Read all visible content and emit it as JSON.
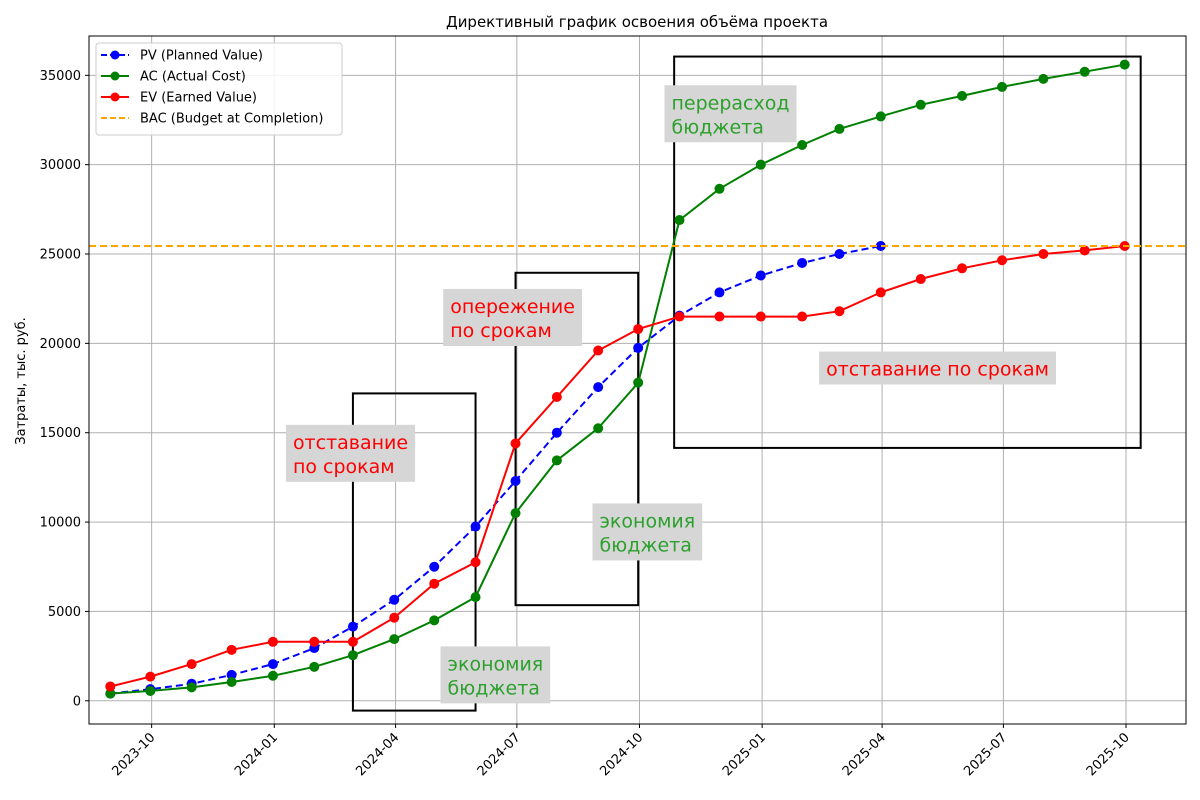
{
  "chart_data": {
    "type": "line",
    "title": "Директивный график освоения объёма проекта",
    "xlabel": "",
    "ylabel": "Затраты, тыс. руб.",
    "x_axis_kind": "date",
    "xlim": [
      "2023-08-15",
      "2025-11-15"
    ],
    "ylim": [
      -1300,
      37200
    ],
    "grid": true,
    "legend_position": "top-left",
    "x_ticks": [
      {
        "date": "2023-10-01",
        "label": "2023-10"
      },
      {
        "date": "2024-01-01",
        "label": "2024-01"
      },
      {
        "date": "2024-04-01",
        "label": "2024-04"
      },
      {
        "date": "2024-07-01",
        "label": "2024-07"
      },
      {
        "date": "2024-10-01",
        "label": "2024-10"
      },
      {
        "date": "2025-01-01",
        "label": "2025-01"
      },
      {
        "date": "2025-04-01",
        "label": "2025-04"
      },
      {
        "date": "2025-07-01",
        "label": "2025-07"
      },
      {
        "date": "2025-10-01",
        "label": "2025-10"
      }
    ],
    "y_ticks": [
      0,
      5000,
      10000,
      15000,
      20000,
      25000,
      30000,
      35000
    ],
    "series": [
      {
        "name": "PV (Planned Value)",
        "color": "#0000ff",
        "line_style": "dashed",
        "x": [
          "2023-08-31",
          "2023-09-30",
          "2023-10-31",
          "2023-11-30",
          "2023-12-31",
          "2024-01-31",
          "2024-02-29",
          "2024-03-31",
          "2024-04-30",
          "2024-05-31",
          "2024-06-30",
          "2024-07-31",
          "2024-08-31",
          "2024-09-30",
          "2024-10-31",
          "2024-11-30",
          "2024-12-31",
          "2025-01-31",
          "2025-02-28",
          "2025-03-31"
        ],
        "values": [
          400,
          650,
          950,
          1450,
          2050,
          2950,
          4150,
          5650,
          7500,
          9750,
          12300,
          15000,
          17550,
          19750,
          21550,
          22850,
          23800,
          24500,
          25000,
          25450
        ]
      },
      {
        "name": "AC (Actual Cost)",
        "color": "#008000",
        "line_style": "solid",
        "x": [
          "2023-08-31",
          "2023-09-30",
          "2023-10-31",
          "2023-11-30",
          "2023-12-31",
          "2024-01-31",
          "2024-02-29",
          "2024-03-31",
          "2024-04-30",
          "2024-05-31",
          "2024-06-30",
          "2024-07-31",
          "2024-08-31",
          "2024-09-30",
          "2024-10-31",
          "2024-11-30",
          "2024-12-31",
          "2025-01-31",
          "2025-02-28",
          "2025-03-31",
          "2025-04-30",
          "2025-05-31",
          "2025-06-30",
          "2025-07-31",
          "2025-08-31",
          "2025-09-30"
        ],
        "values": [
          400,
          550,
          750,
          1050,
          1400,
          1900,
          2550,
          3450,
          4500,
          5800,
          10500,
          13450,
          15250,
          17800,
          26900,
          28650,
          30000,
          31100,
          32000,
          32700,
          33350,
          33850,
          34350,
          34800,
          35200,
          35600
        ]
      },
      {
        "name": "EV (Earned Value)",
        "color": "#ff0000",
        "line_style": "solid",
        "x": [
          "2023-08-31",
          "2023-09-30",
          "2023-10-31",
          "2023-11-30",
          "2023-12-31",
          "2024-01-31",
          "2024-02-29",
          "2024-03-31",
          "2024-04-30",
          "2024-05-31",
          "2024-06-30",
          "2024-07-31",
          "2024-08-31",
          "2024-09-30",
          "2024-10-31",
          "2024-11-30",
          "2024-12-31",
          "2025-01-31",
          "2025-02-28",
          "2025-03-31",
          "2025-04-30",
          "2025-05-31",
          "2025-06-30",
          "2025-07-31",
          "2025-08-31",
          "2025-09-30"
        ],
        "values": [
          800,
          1350,
          2050,
          2850,
          3300,
          3300,
          3300,
          4650,
          6550,
          7750,
          14400,
          17000,
          19600,
          20800,
          21500,
          21500,
          21500,
          21500,
          21800,
          22850,
          23600,
          24200,
          24650,
          25000,
          25200,
          25450
        ]
      },
      {
        "name": "BAC (Budget at Completion)",
        "color": "#ffa500",
        "line_style": "dashed",
        "horizontal_line": true,
        "value": 25450
      }
    ],
    "boxes": [
      {
        "x0": "2024-02-29",
        "x1": "2024-05-31",
        "y0": -550,
        "y1": 17200
      },
      {
        "x0": "2024-06-30",
        "x1": "2024-09-30",
        "y0": 5350,
        "y1": 23950
      },
      {
        "x0": "2024-10-27",
        "x1": "2025-10-12",
        "y0": 14150,
        "y1": 36050
      }
    ],
    "annotations": [
      {
        "lines": [
          "отставание",
          "по срокам"
        ],
        "color": "#ff0000",
        "date": "2024-01-15",
        "value": 14100
      },
      {
        "lines": [
          "экономия",
          "бюджета"
        ],
        "color": "#2ca02c",
        "date": "2024-05-10",
        "value": 1700
      },
      {
        "lines": [
          "опережение",
          "по срокам"
        ],
        "color": "#ff0000",
        "date": "2024-05-12",
        "value": 21700
      },
      {
        "lines": [
          "экономия",
          "бюджета"
        ],
        "color": "#2ca02c",
        "date": "2024-09-01",
        "value": 9700
      },
      {
        "lines": [
          "перерасход",
          "бюджета"
        ],
        "color": "#2ca02c",
        "date": "2024-10-25",
        "value": 33100
      },
      {
        "lines": [
          "отставание по срокам"
        ],
        "color": "#ff0000",
        "date": "2025-02-18",
        "value": 18200
      }
    ]
  }
}
